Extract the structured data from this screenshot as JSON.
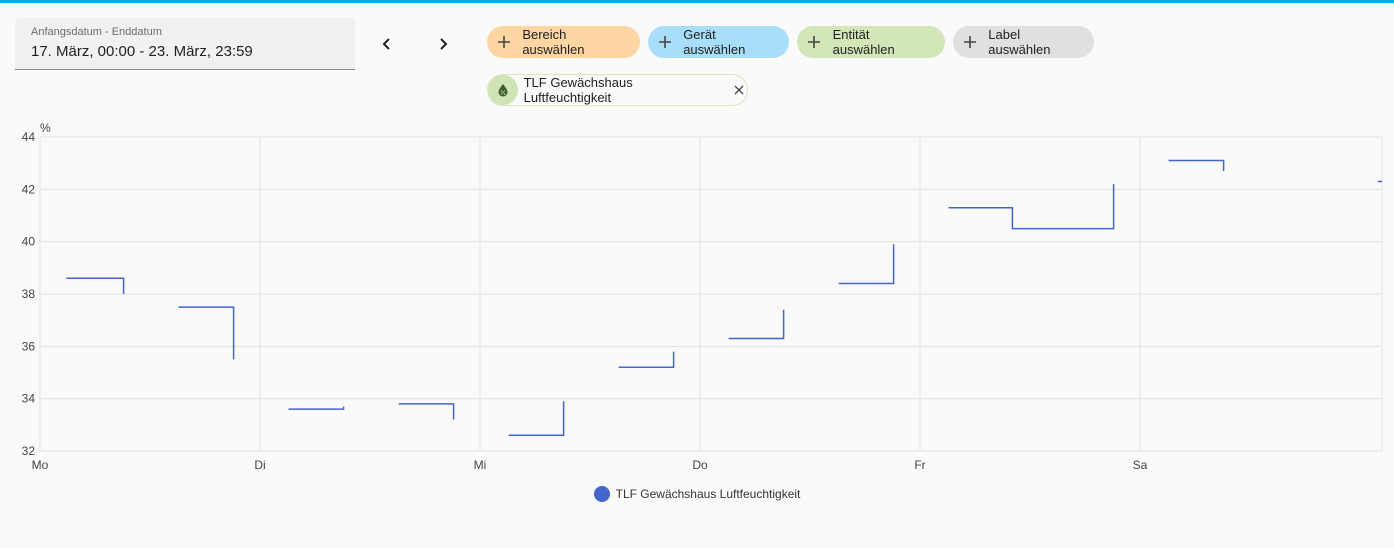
{
  "date_range": {
    "label": "Anfangsdatum - Enddatum",
    "value": "17. März, 00:00 - 23. März, 23:59"
  },
  "nav": {
    "prev_icon": "chevron-left-icon",
    "next_icon": "chevron-right-icon"
  },
  "target_chips": [
    {
      "label": "Bereich auswählen",
      "bg": "#fdd6a4"
    },
    {
      "label": "Gerät auswählen",
      "bg": "#a8def9"
    },
    {
      "label": "Entität auswählen",
      "bg": "#d2e6b8"
    },
    {
      "label": "Label auswählen",
      "bg": "#e0e0e0"
    }
  ],
  "selected_entity": {
    "label": "TLF Gewächshaus Luftfeuchtigkeit",
    "icon": "water-percent-icon"
  },
  "chart_data": {
    "type": "line",
    "ylabel": "%",
    "ylim": [
      32,
      44
    ],
    "yticks": [
      "32",
      "34",
      "36",
      "38",
      "40",
      "42",
      "44"
    ],
    "xlim": [
      0,
      6.1
    ],
    "xticks": [
      {
        "pos": 0,
        "label": "Mo"
      },
      {
        "pos": 1,
        "label": "Di"
      },
      {
        "pos": 2,
        "label": "Mi"
      },
      {
        "pos": 3,
        "label": "Do"
      },
      {
        "pos": 4,
        "label": "Fr"
      },
      {
        "pos": 5,
        "label": "Sa"
      }
    ],
    "grid": true,
    "legend": "bottom-center",
    "series": [
      {
        "name": "TLF Gewächshaus Luftfeuchtigkeit",
        "color": "#4466cc",
        "segments": [
          [
            [
              0.12,
              38.6
            ],
            [
              0.38,
              38.6
            ],
            [
              0.38,
              38.0
            ]
          ],
          [
            [
              0.63,
              37.5
            ],
            [
              0.88,
              37.5
            ],
            [
              0.88,
              35.5
            ]
          ],
          [
            [
              1.13,
              33.6
            ],
            [
              1.38,
              33.6
            ],
            [
              1.38,
              33.7
            ]
          ],
          [
            [
              1.63,
              33.8
            ],
            [
              1.88,
              33.8
            ],
            [
              1.88,
              33.2
            ]
          ],
          [
            [
              2.13,
              32.6
            ],
            [
              2.38,
              32.6
            ],
            [
              2.38,
              33.9
            ]
          ],
          [
            [
              2.63,
              35.2
            ],
            [
              2.88,
              35.2
            ],
            [
              2.88,
              35.8
            ]
          ],
          [
            [
              3.13,
              36.3
            ],
            [
              3.38,
              36.3
            ],
            [
              3.38,
              37.4
            ]
          ],
          [
            [
              3.63,
              38.4
            ],
            [
              3.88,
              38.4
            ],
            [
              3.88,
              39.9
            ]
          ],
          [
            [
              4.13,
              41.3
            ],
            [
              4.42,
              41.3
            ],
            [
              4.42,
              40.5
            ],
            [
              4.88,
              40.5
            ],
            [
              4.88,
              42.2
            ]
          ],
          [
            [
              5.13,
              43.1
            ],
            [
              5.38,
              43.1
            ],
            [
              5.38,
              42.7
            ]
          ],
          [
            [
              6.08,
              42.3
            ],
            [
              6.1,
              42.3
            ]
          ]
        ]
      }
    ]
  }
}
